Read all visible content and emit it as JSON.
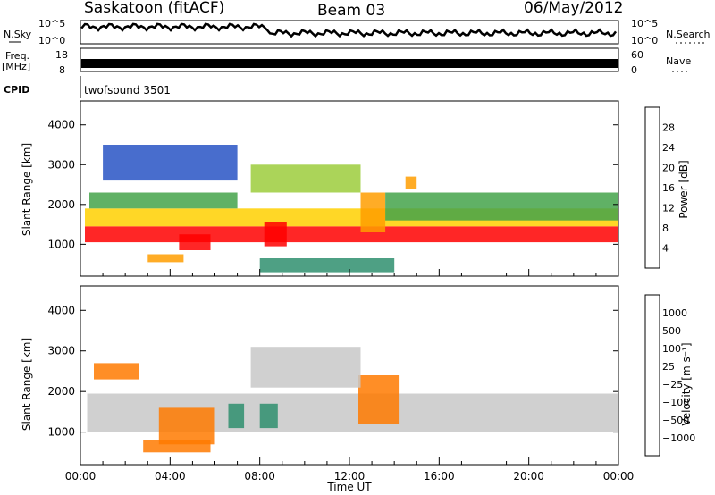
{
  "header": {
    "station": "Saskatoon (fitACF)",
    "beam": "Beam 03",
    "date": "06/May/2012"
  },
  "panels": {
    "nsky": {
      "label": "N.Sky",
      "ticks": [
        "10^5",
        "10^0"
      ],
      "right_label": "N.Search",
      "right_ticks": [
        "10^5",
        "10^0"
      ]
    },
    "freq": {
      "label_line1": "Freq.",
      "label_line2": "[MHz]",
      "ticks": [
        "18",
        "8"
      ],
      "right_label": "Nave",
      "right_ticks": [
        "60",
        "0"
      ]
    },
    "cpid": {
      "label": "CPID",
      "text": "twofsound 3501"
    }
  },
  "chart_data": [
    {
      "type": "heatmap",
      "name": "power",
      "ylabel": "Slant Range [km]",
      "xlabel": "",
      "ylim": [
        200,
        4600
      ],
      "yticks": [
        1000,
        2000,
        3000,
        4000
      ],
      "xlim": [
        0,
        24
      ],
      "colorbar": {
        "label": "Power [dB]",
        "ticks": [
          "28",
          "24",
          "20",
          "16",
          "12",
          "8",
          "4"
        ],
        "colors": [
          "#0000ff",
          "#2854c4",
          "#2f8f6e",
          "#44a34a",
          "#9ccc3c",
          "#ffd000",
          "#ff9d00",
          "#ff5a00",
          "#ff0000"
        ]
      },
      "regions": [
        {
          "t0": 0.2,
          "t1": 24,
          "r0": 1050,
          "r1": 1450,
          "level": 0.95
        },
        {
          "t0": 0.2,
          "t1": 24,
          "r0": 1450,
          "r1": 1900,
          "level": 0.6
        },
        {
          "t0": 0.4,
          "t1": 7.0,
          "r0": 1900,
          "r1": 2300,
          "level": 0.35
        },
        {
          "t0": 4.4,
          "t1": 5.8,
          "r0": 850,
          "r1": 1250,
          "level": 1.0
        },
        {
          "t0": 8.2,
          "t1": 9.2,
          "r0": 950,
          "r1": 1550,
          "level": 1.0
        },
        {
          "t0": 3.0,
          "t1": 4.6,
          "r0": 550,
          "r1": 750,
          "level": 0.75
        },
        {
          "t0": 7.6,
          "t1": 12.5,
          "r0": 2300,
          "r1": 3000,
          "level": 0.45
        },
        {
          "t0": 12.5,
          "t1": 13.6,
          "r0": 1300,
          "r1": 2300,
          "level": 0.7
        },
        {
          "t0": 13.6,
          "t1": 24,
          "r0": 1600,
          "r1": 2300,
          "level": 0.4
        },
        {
          "t0": 14.5,
          "t1": 15.0,
          "r0": 2400,
          "r1": 2700,
          "level": 0.8
        },
        {
          "t0": 8.0,
          "t1": 14.0,
          "r0": 300,
          "r1": 650,
          "level": 0.3
        },
        {
          "t0": 1.0,
          "t1": 7.0,
          "r0": 2600,
          "r1": 3500,
          "level": 0.15
        }
      ]
    },
    {
      "type": "heatmap",
      "name": "velocity",
      "ylabel": "Slant Range [km]",
      "xlabel": "Time UT",
      "ylim": [
        200,
        4600
      ],
      "yticks": [
        1000,
        2000,
        3000,
        4000
      ],
      "xlim": [
        0,
        24
      ],
      "xticks": [
        "00:00",
        "04:00",
        "08:00",
        "12:00",
        "16:00",
        "20:00",
        "00:00"
      ],
      "colorbar": {
        "label": "Velocity [m s⁻¹]",
        "ticks": [
          "1000",
          "500",
          "100",
          "25",
          "−25",
          "−100",
          "−500",
          "−1000"
        ],
        "colors": [
          "#0000ff",
          "#2854c4",
          "#2f8f6e",
          "#44c426",
          "#c8c8c8",
          "#ffb300",
          "#ff7a00",
          "#ff3a00",
          "#ff0000"
        ]
      },
      "regions": [
        {
          "t0": 0.3,
          "t1": 24,
          "r0": 1000,
          "r1": 1950,
          "level": 0.52
        },
        {
          "t0": 3.5,
          "t1": 6.0,
          "r0": 700,
          "r1": 1600,
          "level": 0.75
        },
        {
          "t0": 6.6,
          "t1": 7.3,
          "r0": 1100,
          "r1": 1700,
          "level": 0.2
        },
        {
          "t0": 12.4,
          "t1": 14.2,
          "r0": 1200,
          "r1": 2400,
          "level": 0.8
        },
        {
          "t0": 0.6,
          "t1": 2.6,
          "r0": 2300,
          "r1": 2700,
          "level": 0.7
        },
        {
          "t0": 7.6,
          "t1": 12.5,
          "r0": 2100,
          "r1": 3100,
          "level": 0.5
        },
        {
          "t0": 8.0,
          "t1": 8.8,
          "r0": 1100,
          "r1": 1700,
          "level": 0.28
        },
        {
          "t0": 2.8,
          "t1": 5.8,
          "r0": 500,
          "r1": 800,
          "level": 0.8
        }
      ]
    }
  ]
}
